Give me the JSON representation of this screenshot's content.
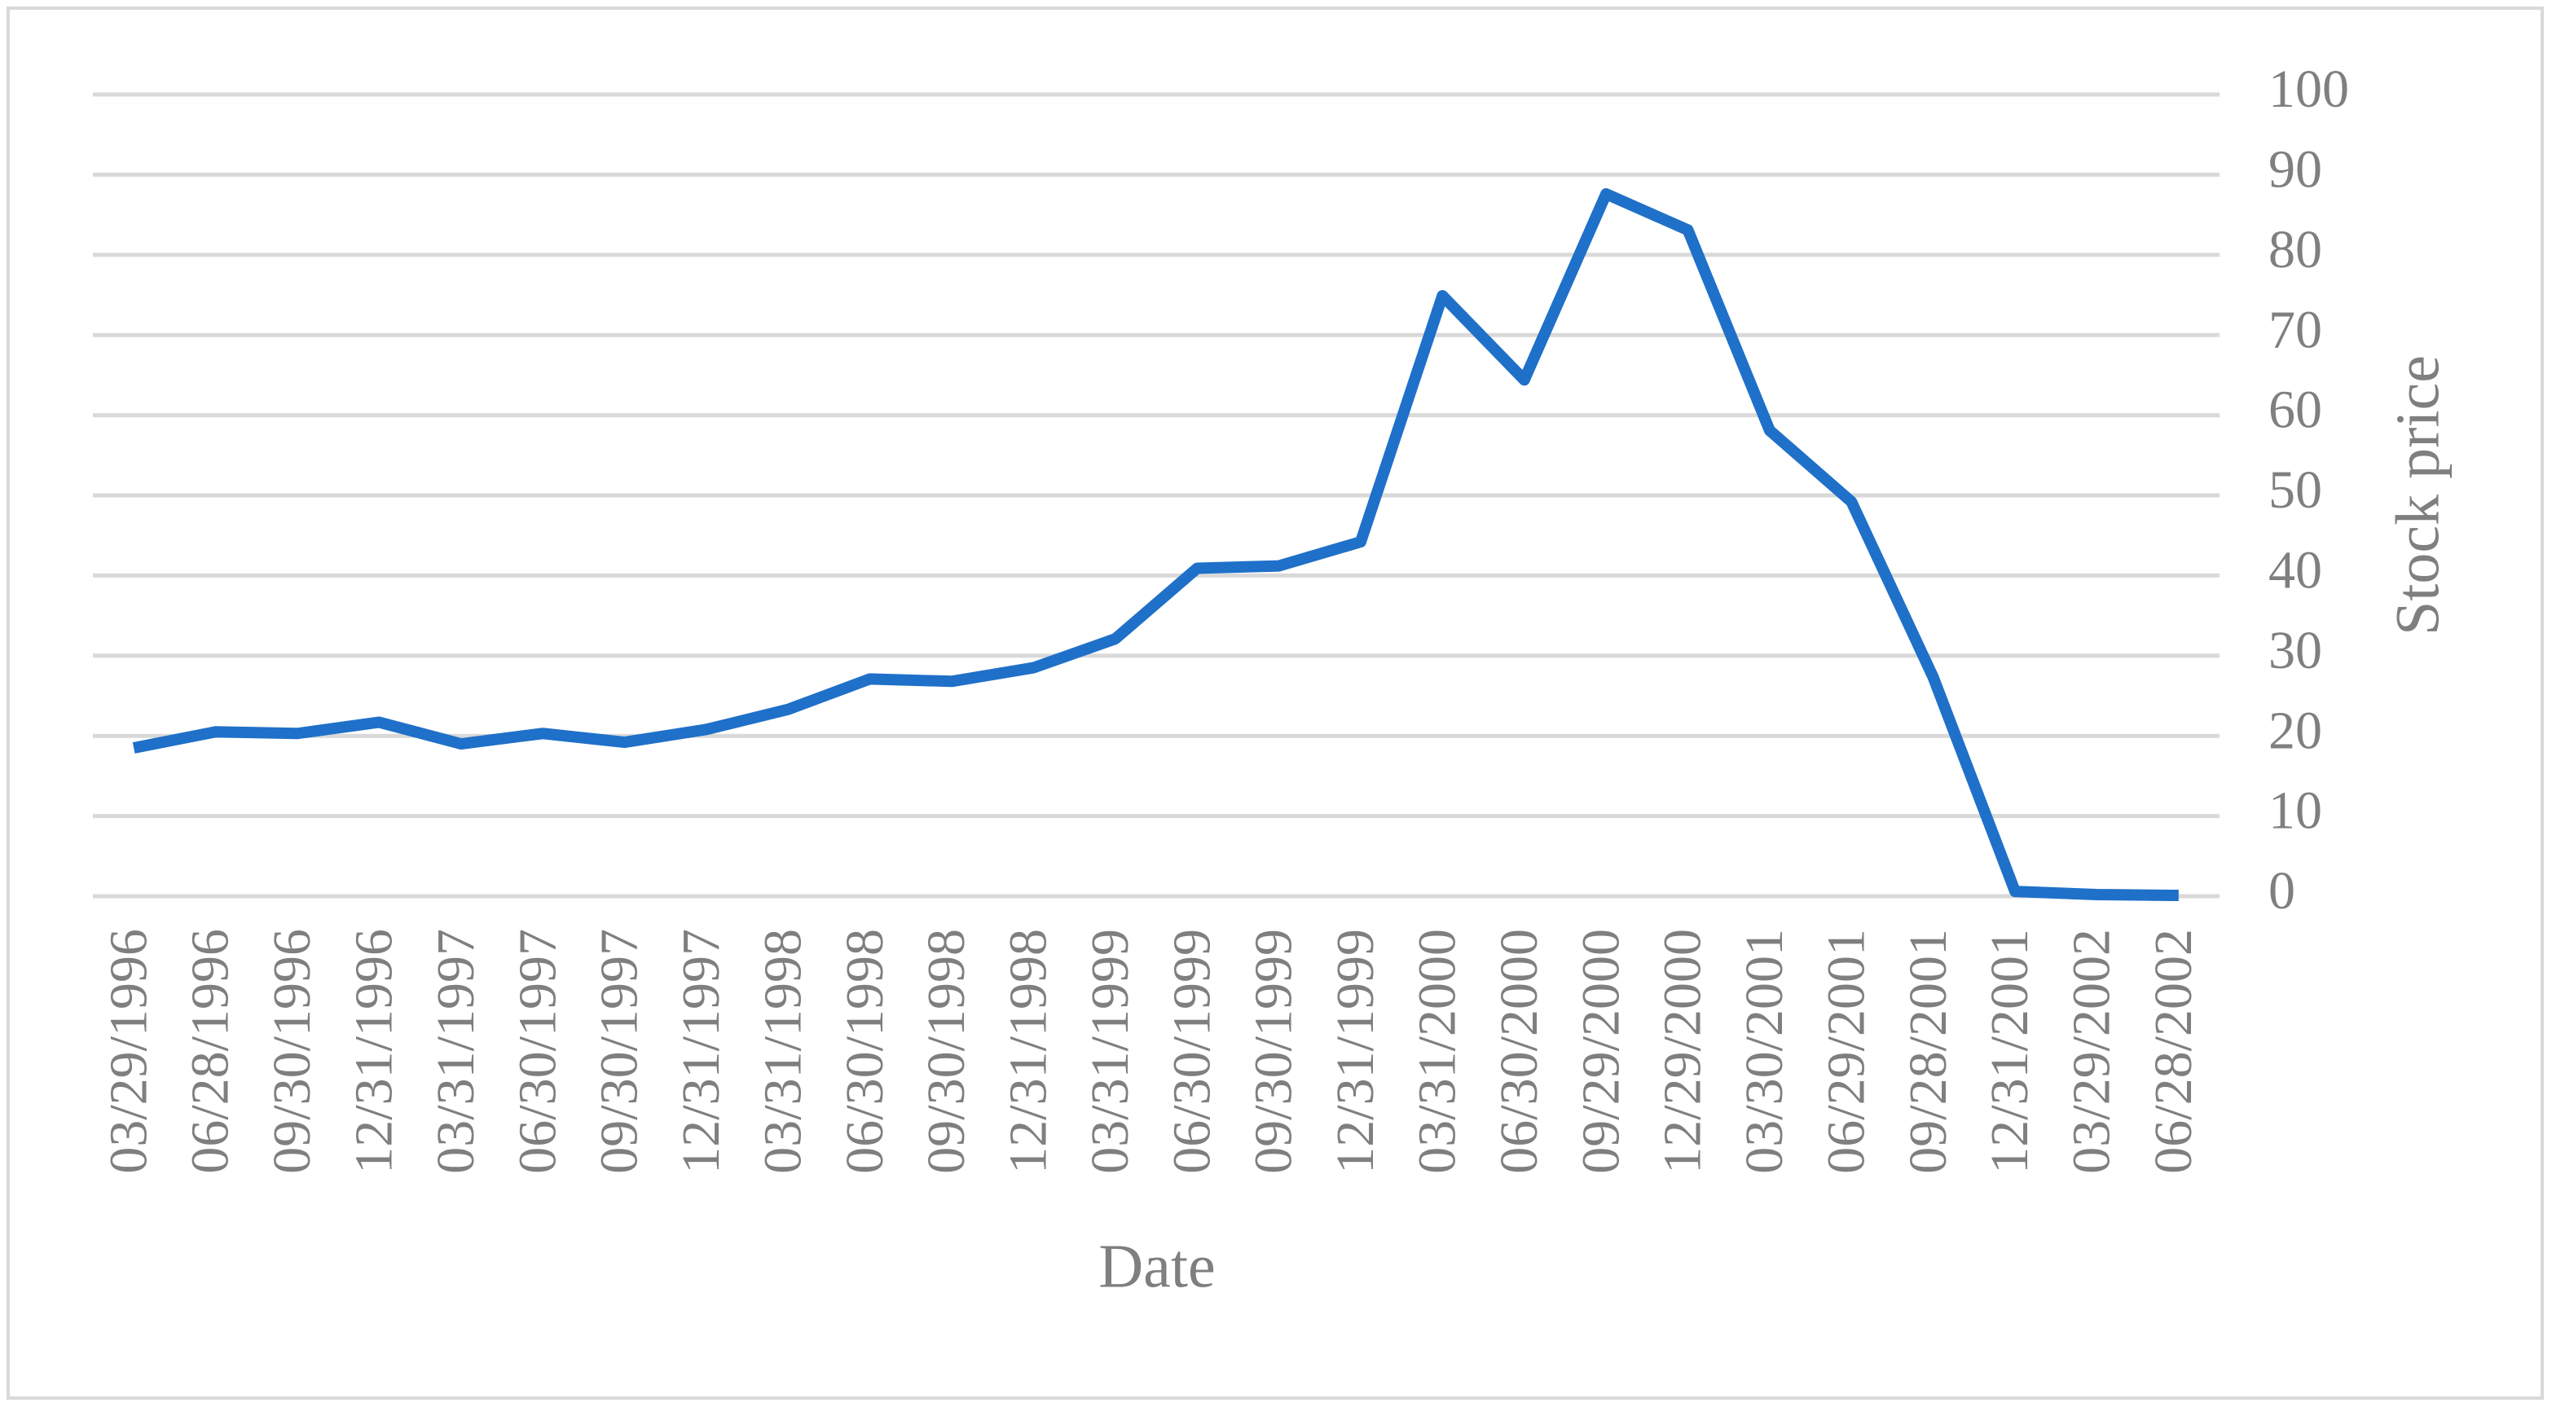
{
  "chart_data": {
    "type": "line",
    "x_label": "Date",
    "y_label": "Stock price",
    "categories": [
      "03/29/1996",
      "06/28/1996",
      "09/30/1996",
      "12/31/1996",
      "03/31/1997",
      "06/30/1997",
      "09/30/1997",
      "12/31/1997",
      "03/31/1998",
      "06/30/1998",
      "09/30/1998",
      "12/31/1998",
      "03/31/1999",
      "06/30/1999",
      "09/30/1999",
      "12/31/1999",
      "03/31/2000",
      "06/30/2000",
      "09/29/2000",
      "12/29/2000",
      "03/30/2001",
      "06/29/2001",
      "09/28/2001",
      "12/31/2001",
      "03/29/2002",
      "06/28/2002"
    ],
    "values": [
      18.5,
      20.5,
      20.3,
      21.7,
      19,
      20.3,
      19.2,
      20.8,
      23.3,
      27.1,
      26.8,
      28.5,
      32.1,
      40.9,
      41.2,
      44.2,
      74.9,
      64.4,
      87.6,
      83.1,
      58.1,
      49.2,
      27.3,
      0.6,
      0.2,
      0.1
    ],
    "color": "#1f70c8",
    "ylim": [
      0,
      100
    ],
    "yticks": [
      0,
      10,
      20,
      30,
      40,
      50,
      60,
      70,
      80,
      90,
      100
    ],
    "grid": true,
    "y_axis_side": "right"
  }
}
